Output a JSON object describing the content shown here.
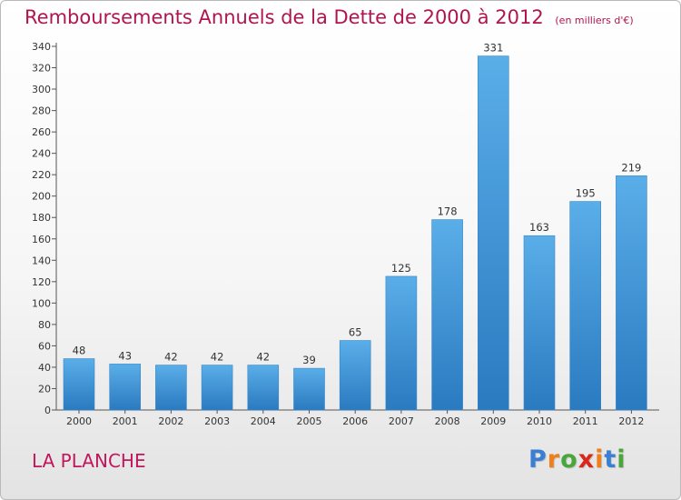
{
  "header": {
    "title": "Remboursements Annuels de la Dette de 2000 à 2012",
    "unit_note": "(en milliers d'€)"
  },
  "footer": {
    "commune": "LA PLANCHE",
    "logo_letters": [
      "P",
      "r",
      "o",
      "x",
      "i",
      "t",
      "i"
    ],
    "logo_colors": [
      "#3a7fd1",
      "#ef7f1a",
      "#4aa53d",
      "#d9271c",
      "#ef7f1a",
      "#3a7fd1",
      "#4aa53d"
    ]
  },
  "colors": {
    "bar_top": "#5aaee8",
    "bar_bottom": "#2a7ac0",
    "title": "#b0154f",
    "axis": "#555555"
  },
  "chart_data": {
    "type": "bar",
    "title": "Remboursements Annuels de la Dette de 2000 à 2012",
    "subtitle": "(en milliers d'€)",
    "xlabel": "",
    "ylabel": "",
    "categories": [
      "2000",
      "2001",
      "2002",
      "2003",
      "2004",
      "2005",
      "2006",
      "2007",
      "2008",
      "2009",
      "2010",
      "2011",
      "2012"
    ],
    "values": [
      48,
      43,
      42,
      42,
      42,
      39,
      65,
      125,
      178,
      331,
      163,
      195,
      219
    ],
    "ylim": [
      0,
      340
    ],
    "yticks": [
      0,
      20,
      40,
      60,
      80,
      100,
      120,
      140,
      160,
      180,
      200,
      220,
      240,
      260,
      280,
      300,
      320,
      340
    ],
    "grid": false,
    "legend": "none"
  }
}
